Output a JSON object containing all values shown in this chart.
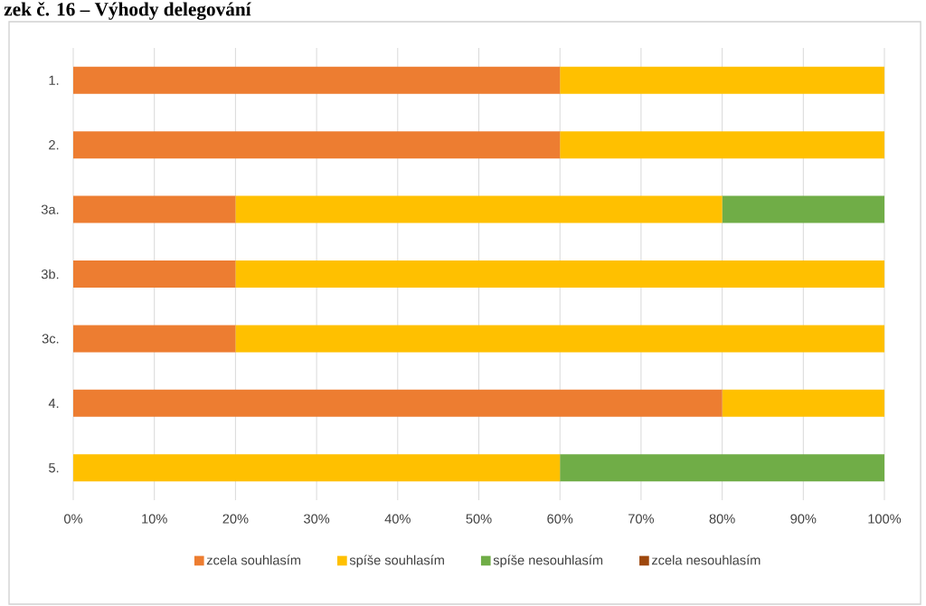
{
  "chart_data": {
    "type": "bar",
    "orientation": "horizontal",
    "stacked": true,
    "title": "zek č. 16 – Výhody delegování",
    "categories": [
      "1.",
      "2.",
      "3a.",
      "3b.",
      "3c.",
      "4.",
      "5."
    ],
    "series": [
      {
        "name": "zcela souhlasím",
        "color": "#ed7d31",
        "values": [
          60,
          60,
          20,
          20,
          20,
          80,
          0
        ]
      },
      {
        "name": "spíše souhlasím",
        "color": "#ffc000",
        "values": [
          40,
          40,
          60,
          80,
          80,
          20,
          60
        ]
      },
      {
        "name": "spíše nesouhlasím",
        "color": "#70ad47",
        "values": [
          0,
          0,
          20,
          0,
          0,
          0,
          40
        ]
      },
      {
        "name": "zcela nesouhlasím",
        "color": "#9e480e",
        "values": [
          0,
          0,
          0,
          0,
          0,
          0,
          0
        ]
      }
    ],
    "xlim": [
      0,
      100
    ],
    "xticks": [
      {
        "value": 0,
        "label": "0%"
      },
      {
        "value": 10,
        "label": "10%"
      },
      {
        "value": 20,
        "label": "20%"
      },
      {
        "value": 30,
        "label": "30%"
      },
      {
        "value": 40,
        "label": "40%"
      },
      {
        "value": 50,
        "label": "50%"
      },
      {
        "value": 60,
        "label": "60%"
      },
      {
        "value": 70,
        "label": "70%"
      },
      {
        "value": 80,
        "label": "80%"
      },
      {
        "value": 90,
        "label": "90%"
      },
      {
        "value": 100,
        "label": "100%"
      }
    ],
    "grid": "x",
    "legend": "bottom"
  }
}
